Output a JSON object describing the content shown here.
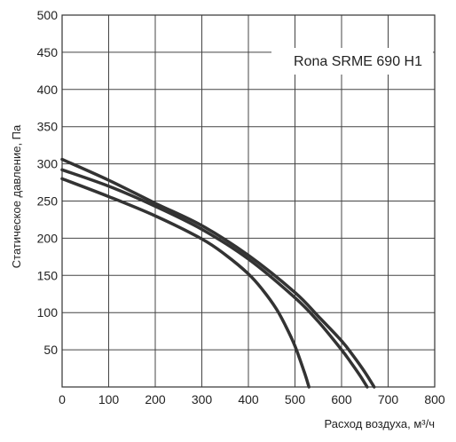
{
  "chart_data": {
    "type": "line",
    "title": "",
    "xlabel": "Расход воздуха, м³/ч",
    "ylabel": "Статическое давление, Па",
    "xlim": [
      0,
      800
    ],
    "ylim": [
      0,
      500
    ],
    "xticks": [
      0,
      100,
      200,
      300,
      400,
      500,
      600,
      700,
      800
    ],
    "yticks": [
      50,
      100,
      150,
      200,
      250,
      300,
      350,
      400,
      450,
      500
    ],
    "grid": true,
    "legend_placement": "top-right",
    "legend_text": "Rona SRME 690 H1",
    "line_color": "#333333",
    "series": [
      {
        "x": [
          0,
          100,
          200,
          300,
          350,
          400,
          430,
          460,
          480,
          500,
          520,
          530
        ],
        "y": [
          280,
          256,
          230,
          199,
          178,
          152,
          131,
          105,
          82,
          55,
          20,
          0
        ]
      },
      {
        "x": [
          0,
          100,
          200,
          300,
          400,
          500,
          550,
          600,
          620,
          640,
          655
        ],
        "y": [
          292,
          270,
          243,
          212,
          172,
          120,
          88,
          50,
          33,
          15,
          0
        ]
      },
      {
        "x": [
          0,
          100,
          200,
          300,
          400,
          500,
          550,
          600,
          625,
          650,
          670
        ],
        "y": [
          306,
          278,
          247,
          217,
          177,
          127,
          95,
          62,
          42,
          20,
          0
        ]
      }
    ]
  }
}
